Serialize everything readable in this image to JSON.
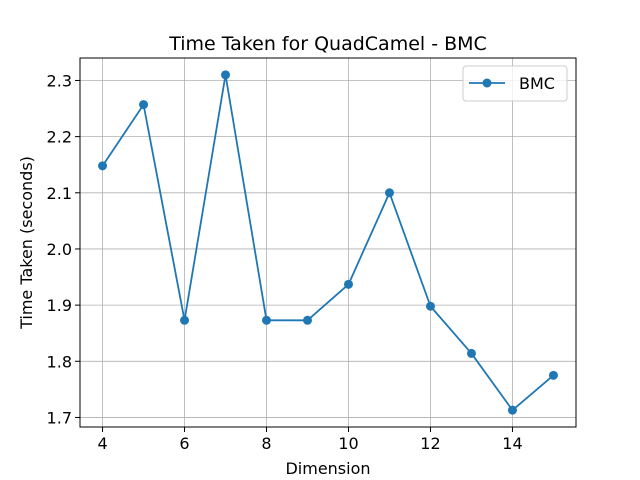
{
  "chart_data": {
    "type": "line",
    "title": "Time Taken for QuadCamel - BMC",
    "xlabel": "Dimension",
    "ylabel": "Time Taken (seconds)",
    "x": [
      4,
      5,
      6,
      7,
      8,
      9,
      10,
      11,
      12,
      13,
      14,
      15
    ],
    "series": [
      {
        "name": "BMC",
        "color": "#1f77b4",
        "values": [
          2.148,
          2.257,
          1.873,
          2.31,
          1.873,
          1.873,
          1.937,
          2.1,
          1.898,
          1.814,
          1.713,
          1.775
        ]
      }
    ],
    "xlim": [
      3.45,
      15.55
    ],
    "ylim": [
      1.683,
      2.34
    ],
    "xticks": [
      4,
      6,
      8,
      10,
      12,
      14
    ],
    "yticks": [
      1.7,
      1.8,
      1.9,
      2.0,
      2.1,
      2.2,
      2.3
    ],
    "xtick_labels": [
      "4",
      "6",
      "8",
      "10",
      "12",
      "14"
    ],
    "ytick_labels": [
      "1.7",
      "1.8",
      "1.9",
      "2.0",
      "2.1",
      "2.2",
      "2.3"
    ],
    "grid": true,
    "legend_position": "top-right"
  }
}
